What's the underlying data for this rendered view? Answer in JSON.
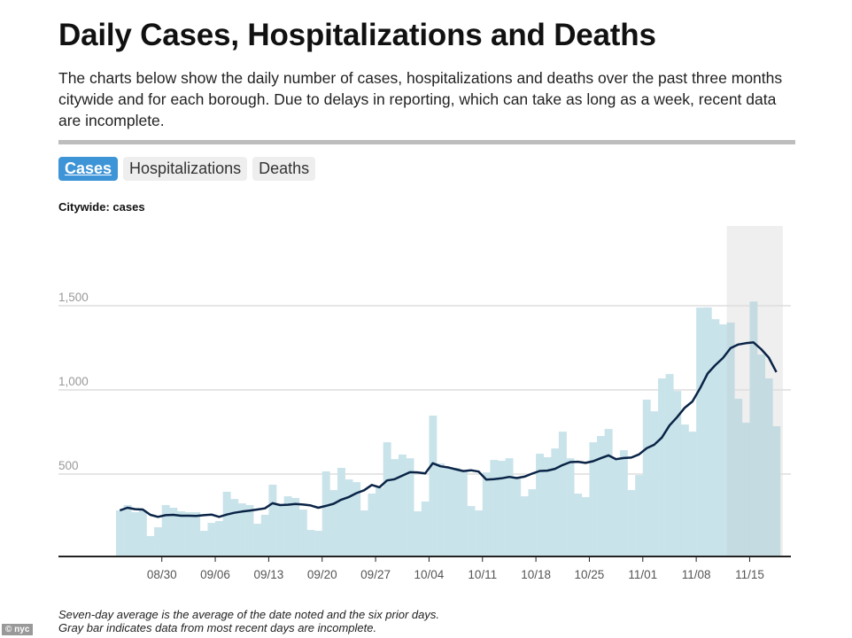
{
  "header": {
    "title": "Daily Cases, Hospitalizations and Deaths",
    "description": "The charts below show the daily number of cases, hospitalizations and deaths over the past three months citywide and for each borough. Due to delays in reporting, which can take as long as a week, recent data are incomplete."
  },
  "tabs": [
    {
      "label": "Cases",
      "active": true
    },
    {
      "label": "Hospitalizations",
      "active": false
    },
    {
      "label": "Deaths",
      "active": false
    }
  ],
  "chart_data": {
    "type": "bar",
    "title": "Citywide: cases",
    "start_date": "08/24",
    "end_date": "11/18",
    "values": [
      284,
      316,
      274,
      284,
      132,
      184,
      316,
      300,
      279,
      274,
      274,
      163,
      210,
      221,
      395,
      352,
      326,
      316,
      205,
      258,
      437,
      316,
      368,
      358,
      289,
      168,
      163,
      516,
      405,
      537,
      468,
      452,
      284,
      384,
      420,
      689,
      589,
      616,
      594,
      279,
      337,
      847,
      563,
      542,
      537,
      521,
      310,
      284,
      510,
      584,
      579,
      594,
      473,
      368,
      410,
      621,
      600,
      652,
      752,
      594,
      384,
      363,
      689,
      726,
      768,
      594,
      642,
      405,
      494,
      942,
      873,
      1068,
      1094,
      994,
      794,
      752,
      1489,
      1490,
      1420,
      1389,
      1400,
      947,
      805,
      1525,
      1210,
      1068,
      784
    ],
    "line_series": "Seven-day average",
    "x_tick_labels": [
      "08/30",
      "09/06",
      "09/13",
      "09/20",
      "09/27",
      "10/04",
      "10/11",
      "10/18",
      "10/25",
      "11/01",
      "11/08",
      "11/15"
    ],
    "y_ticks": [
      500,
      1000,
      1500
    ],
    "y_tick_labels": [
      "500",
      "1,000",
      "1,500"
    ],
    "ylim": [
      0,
      1950
    ],
    "incomplete_from": "11/12",
    "grid": true,
    "colors": {
      "bar": "#c9e3ea",
      "bar_incomplete": "#c4dbe2",
      "line": "#0a2447",
      "incomplete_band": "#efefef",
      "grid": "#dddddd"
    }
  },
  "footer": {
    "notes": [
      "Seven-day average is the average of the date noted and the six prior days.",
      "Gray bar indicates data from most recent days are incomplete."
    ],
    "badge": "© nyc"
  }
}
